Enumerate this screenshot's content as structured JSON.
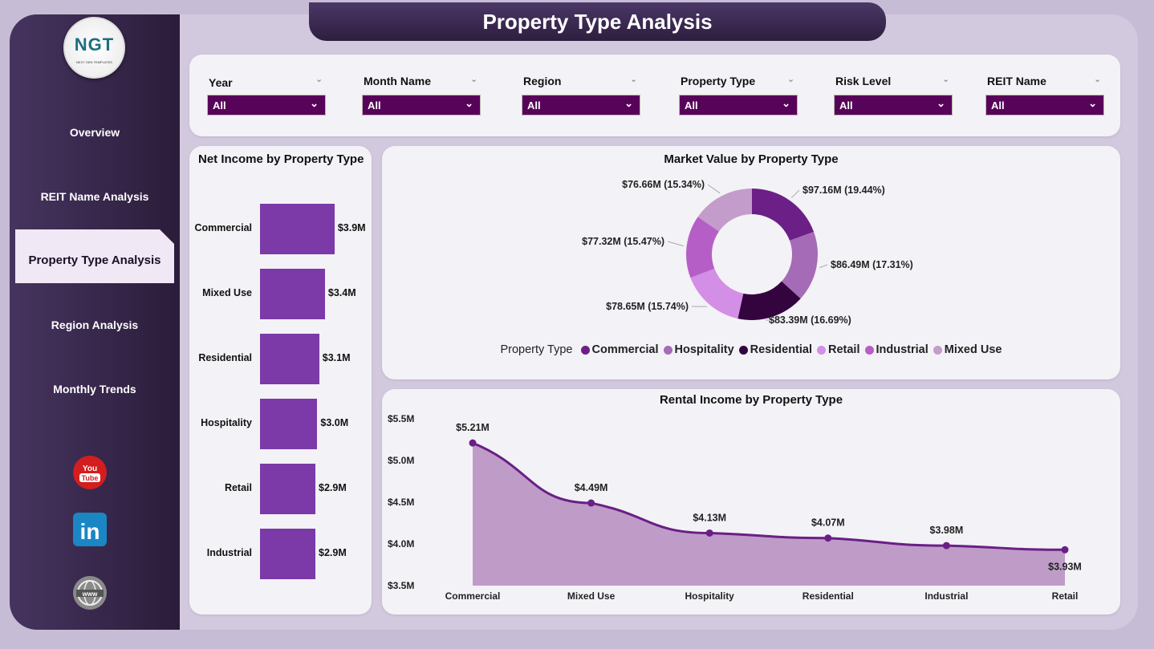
{
  "title": "Property Type Analysis",
  "logo": {
    "text": "NGT",
    "subtitle": "NEXT GEN TEMPLATES"
  },
  "nav": [
    {
      "label": "Overview"
    },
    {
      "label": "REIT Name Analysis"
    },
    {
      "label": "Property Type Analysis",
      "active": true
    },
    {
      "label": "Region Analysis"
    },
    {
      "label": "Monthly Trends"
    }
  ],
  "social": [
    {
      "icon": "youtube-icon",
      "label": "You Tube"
    },
    {
      "icon": "linkedin-icon",
      "label": "in"
    },
    {
      "icon": "globe-icon",
      "label": "www"
    }
  ],
  "filters": [
    {
      "label": "Year",
      "value": "All"
    },
    {
      "label": "Month Name",
      "value": "All"
    },
    {
      "label": "Region",
      "value": "All"
    },
    {
      "label": "Property Type",
      "value": "All"
    },
    {
      "label": "Risk Level",
      "value": "All"
    },
    {
      "label": "REIT Name",
      "value": "All"
    }
  ],
  "colors": {
    "accent": "#570359",
    "bar": "#7b3aa8",
    "line": "#6a1f86",
    "area": "#bf9cc8"
  },
  "chart_data": [
    {
      "type": "bar",
      "orientation": "horizontal",
      "title": "Net Income by Property Type",
      "categories": [
        "Commercial",
        "Mixed Use",
        "Residential",
        "Hospitality",
        "Retail",
        "Industrial"
      ],
      "values": [
        3.9,
        3.4,
        3.1,
        3.0,
        2.9,
        2.9
      ],
      "labels": [
        "$3.9M",
        "$3.4M",
        "$3.1M",
        "$3.0M",
        "$2.9M",
        "$2.9M"
      ]
    },
    {
      "type": "pie",
      "variant": "donut",
      "title": "Market Value by Property Type",
      "legend_title": "Property Type",
      "legend_position": "bottom",
      "slices": [
        {
          "name": "Commercial",
          "value": 97.16,
          "label": "$97.16M (19.44%)",
          "color": "#6c1f86"
        },
        {
          "name": "Hospitality",
          "value": 86.49,
          "label": "$86.49M (17.31%)",
          "color": "#a66bb6"
        },
        {
          "name": "Residential",
          "value": 83.39,
          "label": "$83.39M (16.69%)",
          "color": "#34043f"
        },
        {
          "name": "Retail",
          "value": 78.65,
          "label": "$78.65M (15.74%)",
          "color": "#d38ee6"
        },
        {
          "name": "Industrial",
          "value": 77.32,
          "label": "$77.32M (15.47%)",
          "color": "#b55fc6"
        },
        {
          "name": "Mixed Use",
          "value": 76.66,
          "label": "$76.66M (15.34%)",
          "color": "#c49ccb"
        }
      ]
    },
    {
      "type": "area",
      "title": "Rental Income by Property Type",
      "categories": [
        "Commercial",
        "Mixed Use",
        "Hospitality",
        "Residential",
        "Industrial",
        "Retail"
      ],
      "values": [
        5.21,
        4.49,
        4.13,
        4.07,
        3.98,
        3.93
      ],
      "labels": [
        "$5.21M",
        "$4.49M",
        "$4.13M",
        "$4.07M",
        "$3.98M",
        "$3.93M"
      ],
      "ylim": [
        3.5,
        5.5
      ],
      "yticks": [
        "$3.5M",
        "$4.0M",
        "$4.5M",
        "$5.0M",
        "$5.5M"
      ]
    }
  ]
}
